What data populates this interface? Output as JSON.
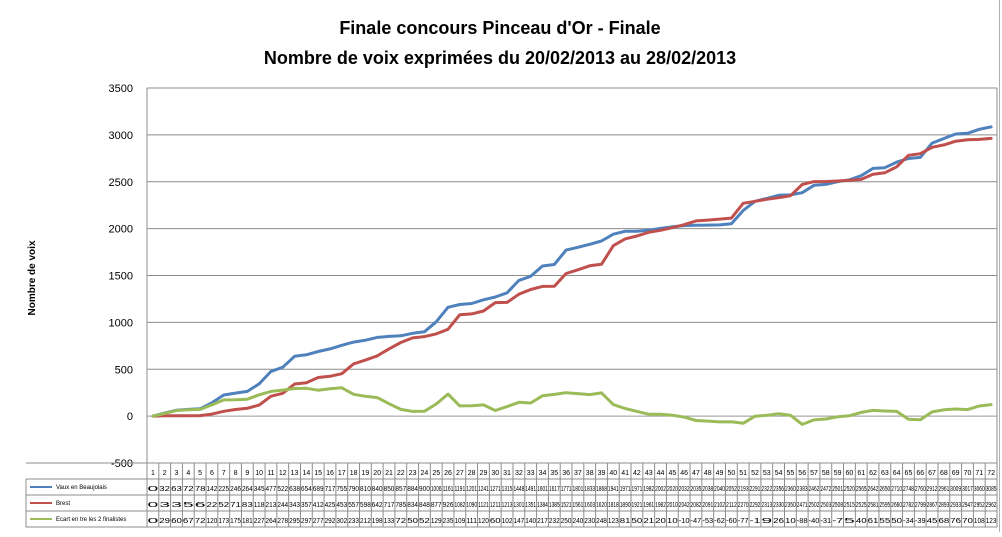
{
  "chart_data": {
    "type": "line",
    "title": "Finale concours Pinceau d'Or - Finale",
    "subtitle": "Nombre de voix exprimées du 20/02/2013  au 28/02/2013",
    "ylabel": "Nombre de voix",
    "xlabel": "",
    "ylim": [
      -500,
      3500
    ],
    "yticks": [
      -500,
      0,
      500,
      1000,
      1500,
      2000,
      2500,
      3000,
      3500
    ],
    "grid": "horizontal",
    "legend": "bottom-left data table",
    "categories": [
      "1",
      "2",
      "3",
      "4",
      "5",
      "6",
      "7",
      "8",
      "9",
      "10",
      "11",
      "12",
      "13",
      "14",
      "15",
      "16",
      "17",
      "18",
      "19",
      "20",
      "21",
      "22",
      "23",
      "24",
      "25",
      "26",
      "27",
      "28",
      "29",
      "30",
      "31",
      "32",
      "33",
      "34",
      "35",
      "36",
      "37",
      "38",
      "39",
      "40",
      "41",
      "42",
      "43",
      "44",
      "45",
      "46",
      "47",
      "48",
      "49",
      "50",
      "51",
      "52",
      "53",
      "54",
      "55",
      "56",
      "57",
      "58",
      "59",
      "60",
      "61",
      "62",
      "63",
      "64",
      "65",
      "66",
      "67",
      "68",
      "69",
      "70",
      "71",
      "72"
    ],
    "series": [
      {
        "name": "Vaux en Beaujolais",
        "color": "#4f81bd",
        "values": [
          0,
          32,
          63,
          72,
          78,
          142,
          225,
          246,
          264,
          345,
          477,
          522,
          638,
          654,
          689,
          717,
          755,
          790,
          810,
          840,
          850,
          857,
          884,
          900,
          1006,
          1161,
          1191,
          1201,
          1241,
          1271,
          1315,
          1448,
          1491,
          1601,
          1617,
          1771,
          1801,
          1833,
          1868,
          1941,
          1971,
          1971,
          1982,
          2002,
          2020,
          2032,
          2035,
          2038,
          2040,
          2052,
          2193,
          2291,
          2322,
          2356,
          2360,
          2383,
          2462,
          2472,
          2501,
          2520,
          2565,
          2642,
          2650,
          2710,
          2748,
          2760,
          2912,
          2961,
          3009,
          3017,
          3060,
          3085
        ]
      },
      {
        "name": "Brest",
        "color": "#c0504d",
        "values": [
          0,
          3,
          3,
          5,
          6,
          22,
          52,
          71,
          83,
          118,
          213,
          244,
          343,
          357,
          412,
          425,
          453,
          557,
          598,
          642,
          717,
          785,
          834,
          848,
          877,
          926,
          1082,
          1090,
          1121,
          1211,
          1213,
          1301,
          1351,
          1384,
          1385,
          1521,
          1561,
          1603,
          1620,
          1818,
          1890,
          1921,
          1961,
          1982,
          2010,
          2042,
          2082,
          2091,
          2102,
          2112,
          2270,
          2292,
          2313,
          2330,
          2350,
          2471,
          2502,
          2503,
          2508,
          2515,
          2525,
          2581,
          2595,
          2660,
          2782,
          2799,
          2867,
          2893,
          2933,
          2947,
          2952,
          2962
        ]
      },
      {
        "name": "Ecart en tre les 2 finalistes",
        "color": "#9bbb59",
        "values": [
          0,
          29,
          60,
          67,
          72,
          120,
          173,
          175,
          181,
          227,
          264,
          278,
          295,
          297,
          277,
          292,
          302,
          233,
          212,
          198,
          133,
          72,
          50,
          52,
          129,
          235,
          109,
          111,
          120,
          60,
          102,
          147,
          140,
          217,
          232,
          250,
          240,
          230,
          248,
          123,
          81,
          50,
          21,
          20,
          10,
          -10,
          -47,
          -53,
          -62,
          -60,
          -77,
          -1,
          9,
          26,
          10,
          -88,
          -40,
          -31,
          -7,
          5,
          40,
          61,
          55,
          50,
          -34,
          -39,
          45,
          68,
          76,
          70,
          108,
          123
        ]
      }
    ]
  }
}
